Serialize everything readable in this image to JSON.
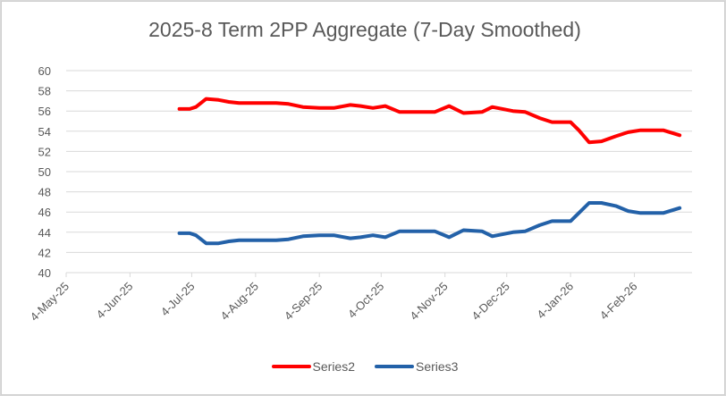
{
  "chart_data": {
    "type": "line",
    "title": "2025-8 Term 2PP Aggregate (7-Day Smoothed)",
    "xlabel": "",
    "ylabel": "",
    "ylim": [
      40,
      60
    ],
    "yticks": [
      40,
      42,
      44,
      46,
      48,
      50,
      52,
      54,
      56,
      58,
      60
    ],
    "xlim": [
      "2025-05-04",
      "2026-03-04"
    ],
    "xticks": [
      {
        "date": "2025-05-04",
        "label": "4-May-25"
      },
      {
        "date": "2025-06-04",
        "label": "4-Jun-25"
      },
      {
        "date": "2025-07-04",
        "label": "4-Jul-25"
      },
      {
        "date": "2025-08-04",
        "label": "4-Aug-25"
      },
      {
        "date": "2025-09-04",
        "label": "4-Sep-25"
      },
      {
        "date": "2025-10-04",
        "label": "4-Oct-25"
      },
      {
        "date": "2025-11-04",
        "label": "4-Nov-25"
      },
      {
        "date": "2025-12-04",
        "label": "4-Dec-25"
      },
      {
        "date": "2026-01-04",
        "label": "4-Jan-26"
      },
      {
        "date": "2026-02-04",
        "label": "4-Feb-26"
      }
    ],
    "grid": true,
    "legend_position": "bottom",
    "series": [
      {
        "name": "Series2",
        "color": "#ff0000",
        "points": [
          [
            "2025-06-28",
            56.2
          ],
          [
            "2025-07-03",
            56.2
          ],
          [
            "2025-07-06",
            56.4
          ],
          [
            "2025-07-11",
            57.2
          ],
          [
            "2025-07-17",
            57.1
          ],
          [
            "2025-07-22",
            56.9
          ],
          [
            "2025-07-27",
            56.8
          ],
          [
            "2025-08-05",
            56.8
          ],
          [
            "2025-08-14",
            56.8
          ],
          [
            "2025-08-20",
            56.7
          ],
          [
            "2025-08-27",
            56.4
          ],
          [
            "2025-09-04",
            56.3
          ],
          [
            "2025-09-11",
            56.3
          ],
          [
            "2025-09-19",
            56.6
          ],
          [
            "2025-09-24",
            56.5
          ],
          [
            "2025-09-30",
            56.3
          ],
          [
            "2025-10-06",
            56.5
          ],
          [
            "2025-10-13",
            55.9
          ],
          [
            "2025-10-20",
            55.9
          ],
          [
            "2025-10-30",
            55.9
          ],
          [
            "2025-11-06",
            56.5
          ],
          [
            "2025-11-13",
            55.8
          ],
          [
            "2025-11-22",
            55.9
          ],
          [
            "2025-11-27",
            56.4
          ],
          [
            "2025-12-07",
            56.0
          ],
          [
            "2025-12-13",
            55.9
          ],
          [
            "2025-12-20",
            55.3
          ],
          [
            "2025-12-26",
            54.9
          ],
          [
            "2026-01-04",
            54.9
          ],
          [
            "2026-01-08",
            54.1
          ],
          [
            "2026-01-13",
            52.9
          ],
          [
            "2026-01-19",
            53.0
          ],
          [
            "2026-01-26",
            53.5
          ],
          [
            "2026-02-01",
            53.9
          ],
          [
            "2026-02-07",
            54.1
          ],
          [
            "2026-02-18",
            54.1
          ],
          [
            "2026-02-26",
            53.6
          ]
        ]
      },
      {
        "name": "Series3",
        "color": "#2361a8",
        "points": [
          [
            "2025-06-28",
            43.9
          ],
          [
            "2025-07-03",
            43.9
          ],
          [
            "2025-07-06",
            43.7
          ],
          [
            "2025-07-11",
            42.9
          ],
          [
            "2025-07-17",
            42.9
          ],
          [
            "2025-07-22",
            43.1
          ],
          [
            "2025-07-27",
            43.2
          ],
          [
            "2025-08-05",
            43.2
          ],
          [
            "2025-08-14",
            43.2
          ],
          [
            "2025-08-20",
            43.3
          ],
          [
            "2025-08-27",
            43.6
          ],
          [
            "2025-09-04",
            43.7
          ],
          [
            "2025-09-11",
            43.7
          ],
          [
            "2025-09-19",
            43.4
          ],
          [
            "2025-09-24",
            43.5
          ],
          [
            "2025-09-30",
            43.7
          ],
          [
            "2025-10-06",
            43.5
          ],
          [
            "2025-10-13",
            44.1
          ],
          [
            "2025-10-20",
            44.1
          ],
          [
            "2025-10-30",
            44.1
          ],
          [
            "2025-11-06",
            43.5
          ],
          [
            "2025-11-13",
            44.2
          ],
          [
            "2025-11-22",
            44.1
          ],
          [
            "2025-11-27",
            43.6
          ],
          [
            "2025-12-07",
            44.0
          ],
          [
            "2025-12-13",
            44.1
          ],
          [
            "2025-12-20",
            44.7
          ],
          [
            "2025-12-26",
            45.1
          ],
          [
            "2026-01-04",
            45.1
          ],
          [
            "2026-01-08",
            45.9
          ],
          [
            "2026-01-13",
            46.9
          ],
          [
            "2026-01-19",
            46.9
          ],
          [
            "2026-01-26",
            46.6
          ],
          [
            "2026-02-01",
            46.1
          ],
          [
            "2026-02-07",
            45.9
          ],
          [
            "2026-02-18",
            45.9
          ],
          [
            "2026-02-26",
            46.4
          ]
        ]
      }
    ]
  }
}
